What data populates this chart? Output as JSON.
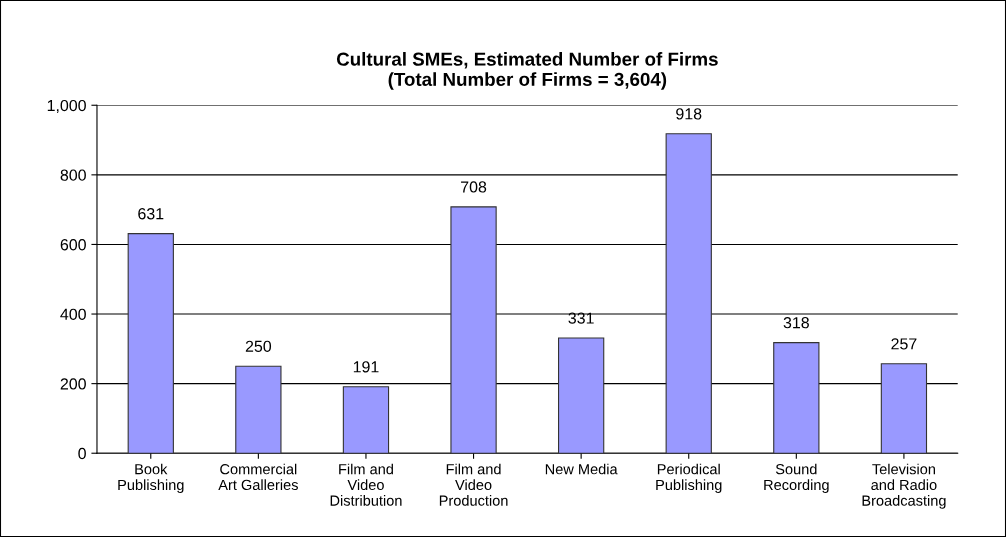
{
  "chart_data": {
    "type": "bar",
    "title": "Cultural SMEs, Estimated Number of Firms\n(Total Number of Firms = 3,604)",
    "categories": [
      "Book\nPublishing",
      "Commercial\nArt Galleries",
      "Film and\nVideo\nDistribution",
      "Film and\nVideo\nProduction",
      "New Media",
      "Periodical\nPublishing",
      "Sound\nRecording",
      "Television\nand Radio\nBroadcasting"
    ],
    "values": [
      631,
      250,
      191,
      708,
      331,
      918,
      318,
      257
    ],
    "color": "#9999ff",
    "ylim": [
      0,
      1000
    ],
    "yticks": [
      0,
      {
        "value": 200,
        "label": "200"
      },
      {
        "value": 400,
        "label": "400"
      },
      {
        "value": 600,
        "label": "600"
      },
      {
        "value": 800,
        "label": "800"
      },
      {
        "value": 1000,
        "label": "1,000"
      }
    ],
    "grid": "y",
    "data_labels": true
  }
}
